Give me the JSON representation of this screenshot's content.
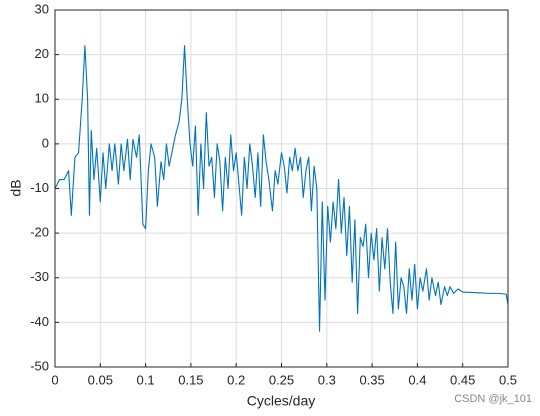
{
  "chart_data": {
    "type": "line",
    "x_label": "Cycles/day",
    "y_label": "dB",
    "watermark": "CSDN @jk_101",
    "xlim": [
      0,
      0.5
    ],
    "xticks": [
      0,
      0.05,
      0.1,
      0.15,
      0.2,
      0.25,
      0.3,
      0.35,
      0.4,
      0.45,
      0.5
    ],
    "ylim": [
      -50,
      30
    ],
    "yticks": [
      -50,
      -40,
      -30,
      -20,
      -10,
      0,
      10,
      20,
      30
    ],
    "grid": true,
    "series": [
      {
        "color": "#0072bd",
        "x": [
          0,
          0.005,
          0.01,
          0.015,
          0.018,
          0.022,
          0.026,
          0.03,
          0.033,
          0.036,
          0.038,
          0.04,
          0.043,
          0.046,
          0.05,
          0.053,
          0.056,
          0.06,
          0.063,
          0.066,
          0.07,
          0.073,
          0.076,
          0.08,
          0.083,
          0.086,
          0.09,
          0.093,
          0.097,
          0.1,
          0.103,
          0.106,
          0.11,
          0.113,
          0.117,
          0.12,
          0.123,
          0.126,
          0.13,
          0.133,
          0.137,
          0.14,
          0.143,
          0.146,
          0.149,
          0.152,
          0.155,
          0.158,
          0.161,
          0.164,
          0.167,
          0.17,
          0.173,
          0.176,
          0.179,
          0.182,
          0.185,
          0.188,
          0.191,
          0.194,
          0.197,
          0.2,
          0.203,
          0.206,
          0.209,
          0.212,
          0.215,
          0.218,
          0.221,
          0.224,
          0.227,
          0.23,
          0.233,
          0.236,
          0.24,
          0.243,
          0.246,
          0.25,
          0.253,
          0.256,
          0.259,
          0.262,
          0.265,
          0.268,
          0.271,
          0.274,
          0.277,
          0.28,
          0.283,
          0.286,
          0.289,
          0.292,
          0.295,
          0.298,
          0.301,
          0.304,
          0.307,
          0.31,
          0.313,
          0.316,
          0.319,
          0.322,
          0.325,
          0.328,
          0.331,
          0.334,
          0.337,
          0.34,
          0.343,
          0.346,
          0.349,
          0.352,
          0.355,
          0.358,
          0.361,
          0.364,
          0.367,
          0.37,
          0.373,
          0.376,
          0.379,
          0.382,
          0.385,
          0.388,
          0.391,
          0.394,
          0.397,
          0.4,
          0.403,
          0.406,
          0.41,
          0.413,
          0.416,
          0.42,
          0.423,
          0.426,
          0.43,
          0.433,
          0.436,
          0.44,
          0.445,
          0.45,
          0.46,
          0.47,
          0.48,
          0.49,
          0.498,
          0.5
        ],
        "values": [
          -10,
          -8,
          -8,
          -6,
          -16,
          -3,
          -2,
          10,
          22,
          10,
          -16,
          3,
          -8,
          -1,
          -13,
          -2,
          -10,
          0,
          -6,
          0,
          -9,
          0,
          -6,
          1,
          -8,
          1,
          -3,
          2,
          -18,
          -19,
          -6,
          0,
          -3,
          -14,
          -4,
          -8,
          0,
          -5,
          -1,
          2,
          5,
          10,
          22,
          10,
          0,
          -5,
          4,
          -16,
          0,
          -10,
          7,
          -5,
          -3,
          -12,
          0,
          -4,
          -15,
          -3,
          -10,
          2,
          -6,
          -2,
          -9,
          -16,
          -3,
          -10,
          0,
          -5,
          -12,
          -2,
          -14,
          2,
          -4,
          -8,
          -15,
          -6,
          -9,
          -2,
          -5,
          -11,
          -3,
          -6,
          -1,
          -6,
          -3,
          -12,
          -6,
          -3,
          -15,
          -5,
          -10,
          -42,
          -13,
          -35,
          -14,
          -22,
          -13,
          -19,
          -8,
          -20,
          -12,
          -25,
          -14,
          -31,
          -17,
          -38,
          -21,
          -23,
          -18,
          -30,
          -20,
          -26,
          -19,
          -33,
          -21,
          -28,
          -19,
          -31,
          -38,
          -22,
          -37,
          -30,
          -32,
          -38,
          -28,
          -35,
          -27,
          -37,
          -30,
          -33,
          -28,
          -35,
          -30,
          -34,
          -31,
          -36,
          -32,
          -34,
          -32,
          -33.5,
          -32.5,
          -33.2,
          -33.3,
          -33.4,
          -33.5,
          -33.5,
          -33.7,
          -36
        ]
      }
    ]
  }
}
